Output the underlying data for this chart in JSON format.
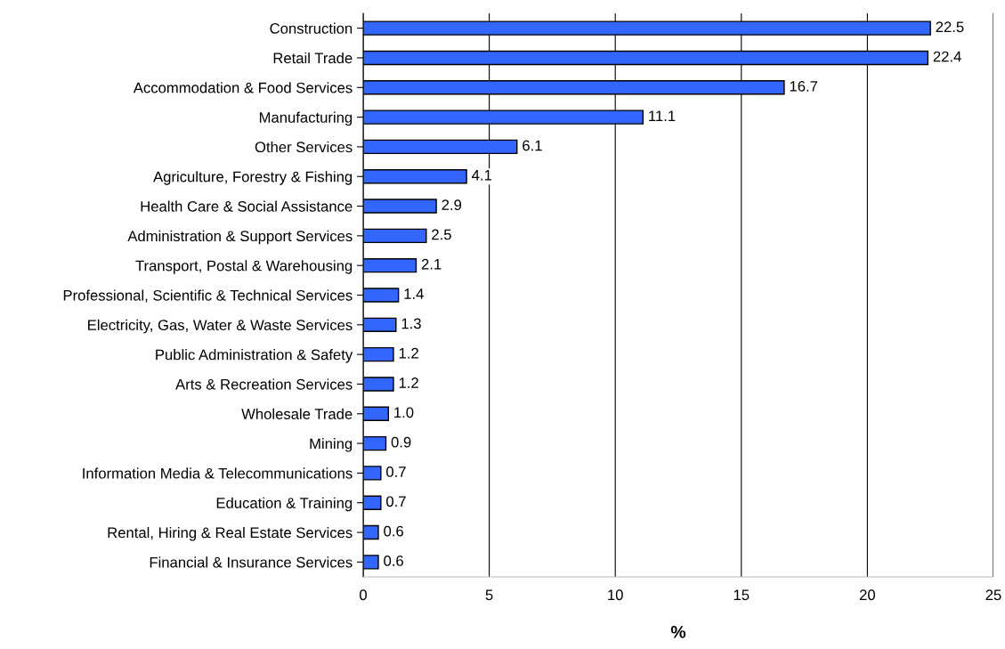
{
  "chart_data": {
    "type": "bar",
    "orientation": "horizontal",
    "xlabel": "%",
    "categories": [
      "Construction",
      "Retail Trade",
      "Accommodation & Food Services",
      "Manufacturing",
      "Other Services",
      "Agriculture, Forestry & Fishing",
      "Health Care & Social Assistance",
      "Administration & Support Services",
      "Transport, Postal & Warehousing",
      "Professional, Scientific & Technical Services",
      "Electricity, Gas, Water & Waste Services",
      "Public Administration & Safety",
      "Arts & Recreation Services",
      "Wholesale Trade",
      "Mining",
      "Information Media & Telecommunications",
      "Education & Training",
      "Rental, Hiring & Real Estate Services",
      "Financial & Insurance Services"
    ],
    "values": [
      22.5,
      22.4,
      16.7,
      11.1,
      6.1,
      4.1,
      2.9,
      2.5,
      2.1,
      1.4,
      1.3,
      1.2,
      1.2,
      1.0,
      0.9,
      0.7,
      0.7,
      0.6,
      0.6
    ],
    "value_labels": [
      "22.5",
      "22.4",
      "16.7",
      "11.1",
      "6.1",
      "4.1",
      "2.9",
      "2.5",
      "2.1",
      "1.4",
      "1.3",
      "1.2",
      "1.2",
      "1.0",
      "0.9",
      "0.7",
      "0.7",
      "0.6",
      "0.6"
    ],
    "color": "#3366ff",
    "xlim": [
      0,
      25
    ],
    "xticks": [
      0,
      5,
      10,
      15,
      20,
      25
    ],
    "grid": "x"
  }
}
